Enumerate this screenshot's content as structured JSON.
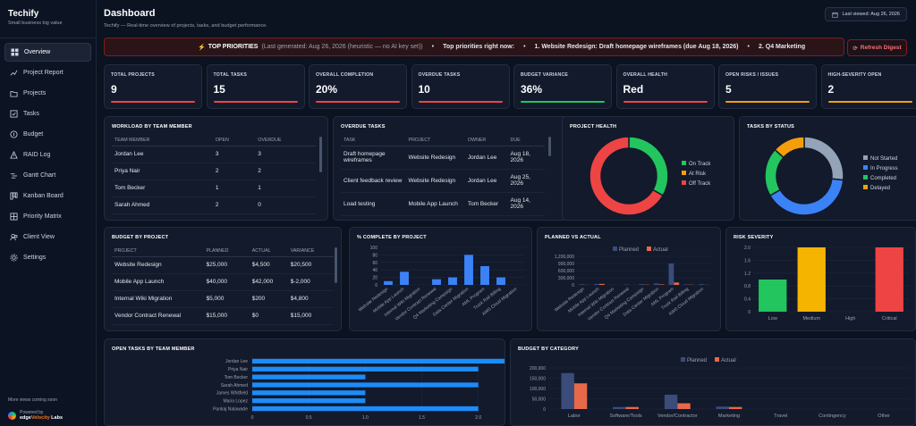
{
  "app": {
    "title": "Techify",
    "subtitle": "Small business big value"
  },
  "sidebar": {
    "items": [
      {
        "label": "Overview",
        "icon": "grid-icon",
        "active": true
      },
      {
        "label": "Project Report",
        "icon": "chart-icon"
      },
      {
        "label": "Projects",
        "icon": "folder-icon"
      },
      {
        "label": "Tasks",
        "icon": "checkbox-icon"
      },
      {
        "label": "Budget",
        "icon": "budget-icon"
      },
      {
        "label": "RAID Log",
        "icon": "alert-icon"
      },
      {
        "label": "Gantt Chart",
        "icon": "gantt-icon"
      },
      {
        "label": "Kanban Board",
        "icon": "kanban-icon"
      },
      {
        "label": "Priority Matrix",
        "icon": "matrix-icon"
      },
      {
        "label": "Client View",
        "icon": "users-icon"
      },
      {
        "label": "Settings",
        "icon": "gear-icon"
      }
    ],
    "footer_note": "More views coming soon",
    "powered_by": "Powered by",
    "logo_a": "edge",
    "logo_b": "Velocity",
    "logo_c": " Labs"
  },
  "header": {
    "title": "Dashboard",
    "subtitle": "Techify — Real-time overview of projects, tasks, and budget performance.",
    "last_viewed": "Last viewed: Aug 26, 2026"
  },
  "ticker": {
    "label": "TOP PRIORITIES",
    "generated": "(Last generated: Aug 26, 2026 (heuristic — no AI key set))",
    "right_now": "Top priorities right now:",
    "item1": "1. Website Redesign: Draft homepage wireframes (due Aug 18, 2026)",
    "item2": "2. Q4 Marketing",
    "refresh_label": "Refresh Digest"
  },
  "kpis": [
    {
      "label": "TOTAL PROJECTS",
      "value": "9",
      "color": "#ef4444"
    },
    {
      "label": "TOTAL TASKS",
      "value": "15",
      "color": "#ef4444"
    },
    {
      "label": "OVERALL COMPLETION",
      "value": "20%",
      "color": "#ef4444"
    },
    {
      "label": "OVERDUE TASKS",
      "value": "10",
      "color": "#ef4444"
    },
    {
      "label": "BUDGET VARIANCE",
      "value": "36%",
      "color": "#22c55e"
    },
    {
      "label": "OVERALL HEALTH",
      "value": "Red",
      "color": "#ef4444"
    },
    {
      "label": "OPEN RISKS / ISSUES",
      "value": "5",
      "color": "#f59e0b"
    },
    {
      "label": "HIGH-SEVERITY OPEN",
      "value": "2",
      "color": "#f59e0b"
    }
  ],
  "workload": {
    "title": "WORKLOAD BY TEAM MEMBER",
    "headers": [
      "TEAM MEMBER",
      "OPEN",
      "OVERDUE"
    ],
    "rows": [
      {
        "name": "Jordan Lee",
        "open": "3",
        "overdue": "3",
        "hot": true
      },
      {
        "name": "Priya Nair",
        "open": "2",
        "overdue": "2",
        "hot": true
      },
      {
        "name": "Tom Becker",
        "open": "1",
        "overdue": "1",
        "hot": true
      },
      {
        "name": "Sarah Ahmed",
        "open": "2",
        "overdue": "0",
        "hot": false
      }
    ]
  },
  "overdue": {
    "title": "OVERDUE TASKS",
    "headers": [
      "TASK",
      "PROJECT",
      "OWNER",
      "DUE"
    ],
    "rows": [
      {
        "task": "Draft homepage wireframes",
        "project": "Website Redesign",
        "owner": "Jordan Lee",
        "due": "Aug 18, 2026"
      },
      {
        "task": "Client feedback review",
        "project": "Website Redesign",
        "owner": "Jordan Lee",
        "due": "Aug 25, 2026"
      },
      {
        "task": "Load testing",
        "project": "Mobile App Launch",
        "owner": "Tom Becker",
        "due": "Aug 14, 2026"
      }
    ]
  },
  "budget_table": {
    "title": "BUDGET BY PROJECT",
    "headers": [
      "PROJECT",
      "PLANNED",
      "ACTUAL",
      "VARIANCE"
    ],
    "rows": [
      {
        "project": "Website Redesign",
        "planned": "$25,000",
        "actual": "$4,500",
        "variance": "$20,500",
        "pos": true
      },
      {
        "project": "Mobile App Launch",
        "planned": "$40,000",
        "actual": "$42,000",
        "variance": "$-2,000",
        "pos": false
      },
      {
        "project": "Internal Wiki Migration",
        "planned": "$5,000",
        "actual": "$200",
        "variance": "$4,800",
        "pos": true
      },
      {
        "project": "Vendor Contract Renewal",
        "planned": "$15,000",
        "actual": "$0",
        "variance": "$15,000",
        "pos": true
      }
    ]
  },
  "chart_data": [
    {
      "id": "project_health",
      "type": "pie",
      "title": "PROJECT HEALTH",
      "labels": [
        "On Track",
        "At Risk",
        "Off Track"
      ],
      "values": [
        3,
        0,
        6
      ],
      "colors": [
        "#22c55e",
        "#f59e0b",
        "#ef4444"
      ]
    },
    {
      "id": "tasks_by_status",
      "type": "pie",
      "title": "TASKS BY STATUS",
      "labels": [
        "Not Started",
        "In Progress",
        "Completed",
        "Delayed"
      ],
      "values": [
        4,
        6,
        3,
        2
      ],
      "colors": [
        "#94a3b8",
        "#3b82f6",
        "#22c55e",
        "#f59e0b"
      ]
    },
    {
      "id": "pct_complete",
      "type": "bar",
      "title": "% COMPLETE BY PROJECT",
      "categories": [
        "Website Redesign",
        "Mobile App Launch",
        "Internal Wiki Migration",
        "Vendor Contract Renewal",
        "Q4 Marketing Campaign",
        "Data Center Migration",
        "AML Program",
        "Truck Rail Billing",
        "AWS Cloud Migration"
      ],
      "values": [
        10,
        35,
        0,
        15,
        20,
        80,
        50,
        20,
        0
      ],
      "ylim": [
        0,
        100
      ],
      "yticks": [
        0,
        20,
        40,
        60,
        80,
        100
      ],
      "color": "#3b82f6"
    },
    {
      "id": "planned_vs_actual",
      "type": "bar",
      "title": "PLANNED VS ACTUAL",
      "categories": [
        "Website Redesign",
        "Mobile App Launch",
        "Internal Wiki Migration",
        "Vendor Contract Renewal",
        "Q4 Marketing Campaign",
        "Data Center Migration",
        "AML Program",
        "Truck Rail Billing",
        "AWS Cloud Migration"
      ],
      "series": [
        {
          "name": "Planned",
          "values": [
            25000,
            40000,
            5000,
            15000,
            30000,
            60000,
            900000,
            20000,
            30000
          ],
          "color": "#3b4b7a"
        },
        {
          "name": "Actual",
          "values": [
            4500,
            42000,
            200,
            0,
            10000,
            20000,
            100000,
            10000,
            5000
          ],
          "color": "#e8684a"
        }
      ],
      "ylim": [
        0,
        1200000
      ],
      "yticks": [
        0,
        300000,
        600000,
        900000,
        1200000
      ],
      "ytick_labels": [
        "0",
        "300,000",
        "600,000",
        "900,000",
        "1,200,000"
      ]
    },
    {
      "id": "risk_severity",
      "type": "bar",
      "title": "RISK SEVERITY",
      "categories": [
        "Low",
        "Medium",
        "High",
        "Critical"
      ],
      "values": [
        1,
        2,
        0,
        2
      ],
      "colors": [
        "#22c55e",
        "#f5b400",
        "#f97316",
        "#ef4444"
      ],
      "ylim": [
        0,
        2
      ],
      "yticks": [
        0,
        0.4,
        0.8,
        1.2,
        1.6,
        2.0
      ],
      "ytick_labels": [
        "0",
        "0.4",
        "0.8",
        "1.2",
        "1.6",
        "2.0"
      ]
    },
    {
      "id": "open_tasks_member",
      "type": "bar",
      "orientation": "horizontal",
      "title": "OPEN TASKS BY TEAM MEMBER",
      "categories": [
        "Jordan Lee",
        "Priya Nair",
        "Tom Becker",
        "Sarah Ahmed",
        "James Whitfield",
        "Maria Lopez",
        "Pankaj Nalawade"
      ],
      "values": [
        3,
        2,
        1,
        2,
        1,
        1,
        2
      ],
      "xlim": [
        0,
        3
      ],
      "xticks": [
        0,
        0.5,
        1,
        1.5,
        2,
        2.5,
        3
      ],
      "xtick_labels": [
        "0",
        "0.5",
        "1.0",
        "1.5",
        "2.0",
        "2.5",
        "3.0"
      ],
      "color": "#1d8cf8"
    },
    {
      "id": "budget_by_category",
      "type": "bar",
      "title": "BUDGET BY CATEGORY",
      "categories": [
        "Labor",
        "Software/Tools",
        "Vendor/Contractor",
        "Marketing",
        "Travel",
        "Contingency",
        "Other"
      ],
      "series": [
        {
          "name": "Planned",
          "values": [
            175000,
            10000,
            70000,
            12000,
            0,
            0,
            0
          ],
          "color": "#3b4b7a"
        },
        {
          "name": "Actual",
          "values": [
            125000,
            10000,
            28000,
            10000,
            0,
            0,
            0
          ],
          "color": "#e8684a"
        }
      ],
      "ylim": [
        0,
        200000
      ],
      "yticks": [
        0,
        50000,
        100000,
        150000,
        200000
      ],
      "ytick_labels": [
        "0",
        "50,000",
        "100,000",
        "150,000",
        "200,000"
      ]
    }
  ]
}
